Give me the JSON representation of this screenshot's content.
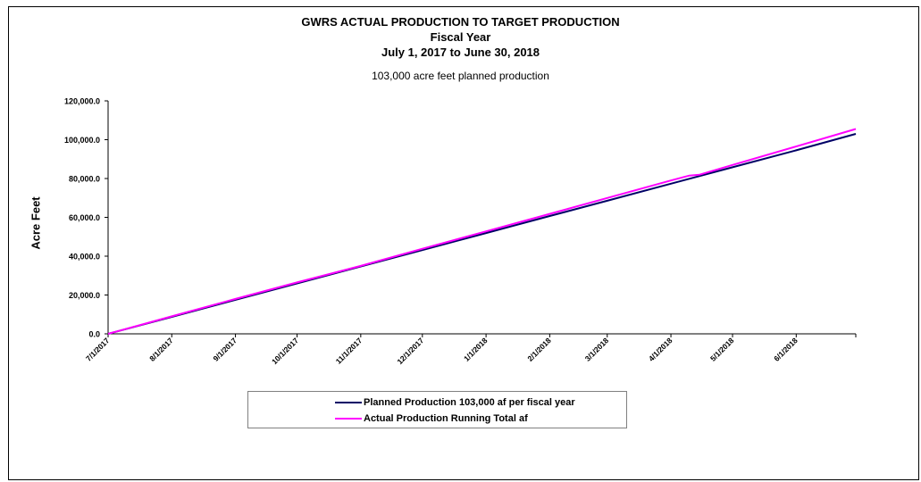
{
  "chart_data": {
    "type": "line",
    "title": "GWRS ACTUAL PRODUCTION TO TARGET PRODUCTION",
    "title_line2": "Fiscal Year",
    "title_line3": "July 1, 2017 to June 30, 2018",
    "subtitle": "103,000 acre feet planned production",
    "ylabel": "Acre Feet",
    "xlabel": "",
    "ylim": [
      0,
      120000
    ],
    "y_ticks": [
      "0.0",
      "20,000.0",
      "40,000.0",
      "60,000.0",
      "80,000.0",
      "100,000.0",
      "120,000.0"
    ],
    "x_tick_labels": [
      "7/1/2017",
      "8/1/2017",
      "9/1/2017",
      "10/1/2017",
      "11/1/2017",
      "12/1/2017",
      "1/1/2018",
      "2/1/2018",
      "3/1/2018",
      "4/1/2018",
      "5/1/2018",
      "6/1/2018"
    ],
    "x_range": [
      "7/1/2017",
      "6/30/2018"
    ],
    "grid": false,
    "legend_position": "bottom",
    "series": [
      {
        "name": "Planned Production 103,000 af per fiscal year",
        "color": "#000066",
        "x": [
          "7/1/2017",
          "8/1/2017",
          "9/1/2017",
          "10/1/2017",
          "11/1/2017",
          "12/1/2017",
          "1/1/2018",
          "2/1/2018",
          "3/1/2018",
          "4/1/2018",
          "5/1/2018",
          "6/1/2018",
          "6/30/2018"
        ],
        "values": [
          0,
          8748,
          17496,
          25962,
          34710,
          43175,
          51923,
          60671,
          68572,
          77320,
          85785,
          94534,
          103000
        ]
      },
      {
        "name": "Actual Production Running Total af",
        "color": "#ff00ff",
        "x": [
          "7/1/2017",
          "8/1/2017",
          "9/1/2017",
          "10/1/2017",
          "11/1/2017",
          "12/1/2017",
          "1/1/2018",
          "2/1/2018",
          "3/1/2018",
          "4/1/2018",
          "4/10/2018",
          "4/15/2018",
          "5/1/2018",
          "6/1/2018",
          "6/30/2018"
        ],
        "values": [
          0,
          9000,
          18000,
          26500,
          35000,
          43800,
          52800,
          61800,
          70000,
          79000,
          81500,
          82000,
          87000,
          96500,
          105500
        ]
      }
    ]
  },
  "colors": {
    "axis": "#000000",
    "frame": "#000000"
  }
}
